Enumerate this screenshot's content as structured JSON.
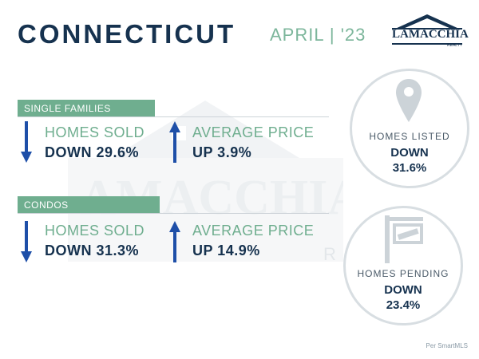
{
  "header": {
    "title": "CONNECTICUT",
    "date": "APRIL | '23"
  },
  "logo": {
    "name": "LAMACCHIA",
    "sub": "REALTY"
  },
  "watermark": {
    "text": "LAMACCHIA",
    "sub": "R"
  },
  "sections": [
    {
      "label": "SINGLE FAMILIES",
      "sold_label": "HOMES SOLD",
      "sold_value": "DOWN 29.6%",
      "sold_direction": "down",
      "price_label": "AVERAGE PRICE",
      "price_value": "UP 3.9%",
      "price_direction": "up"
    },
    {
      "label": "CONDOS",
      "sold_label": "HOMES SOLD",
      "sold_value": "DOWN 31.3%",
      "sold_direction": "down",
      "price_label": "AVERAGE PRICE",
      "price_value": "UP 14.9%",
      "price_direction": "up"
    }
  ],
  "circles": [
    {
      "label": "HOMES LISTED",
      "value_line1": "DOWN",
      "value_line2": "31.6%",
      "icon": "map-pin-icon"
    },
    {
      "label": "HOMES PENDING",
      "value_line1": "DOWN",
      "value_line2": "23.4%",
      "icon": "sign-post-icon"
    }
  ],
  "source": "Per SmartMLS",
  "colors": {
    "navy": "#16324f",
    "green": "#6fae8f",
    "arrow_blue": "#1e4fa8",
    "gray": "#d8dee2"
  }
}
